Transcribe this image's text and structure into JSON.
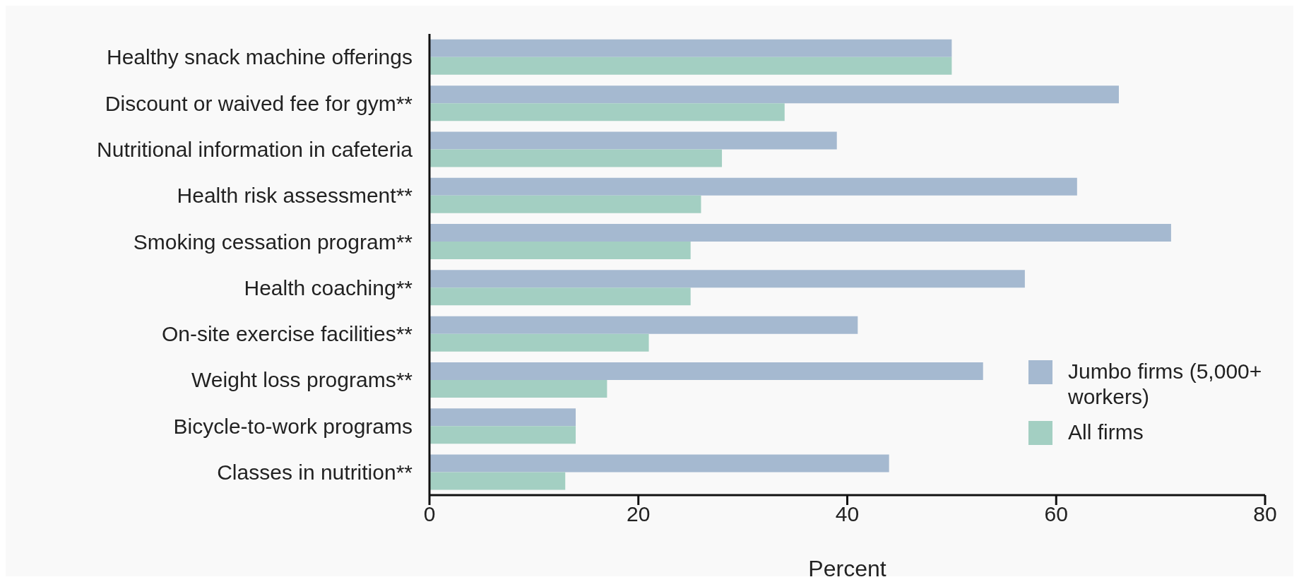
{
  "chart_data": {
    "type": "bar",
    "orientation": "horizontal",
    "xlabel": "Percent",
    "categories": [
      "Healthy snack machine offerings",
      "Discount or waived fee for gym**",
      "Nutritional information in cafeteria",
      "Health risk assessment**",
      "Smoking cessation program**",
      "Health coaching**",
      "On-site exercise facilities**",
      "Weight loss programs**",
      "Bicycle-to-work programs",
      "Classes in nutrition**"
    ],
    "series": [
      {
        "name": "Jumbo firms (5,000+ workers)",
        "color": "#a5b9d0",
        "values": [
          50,
          66,
          39,
          62,
          71,
          57,
          41,
          53,
          14,
          44
        ]
      },
      {
        "name": "All firms",
        "color": "#a3cfc2",
        "values": [
          50,
          34,
          28,
          26,
          25,
          25,
          21,
          17,
          14,
          13
        ]
      }
    ],
    "xlim": [
      0,
      80
    ],
    "xticks": [
      0,
      20,
      40,
      60,
      80
    ],
    "grid": false,
    "legend": "right"
  }
}
